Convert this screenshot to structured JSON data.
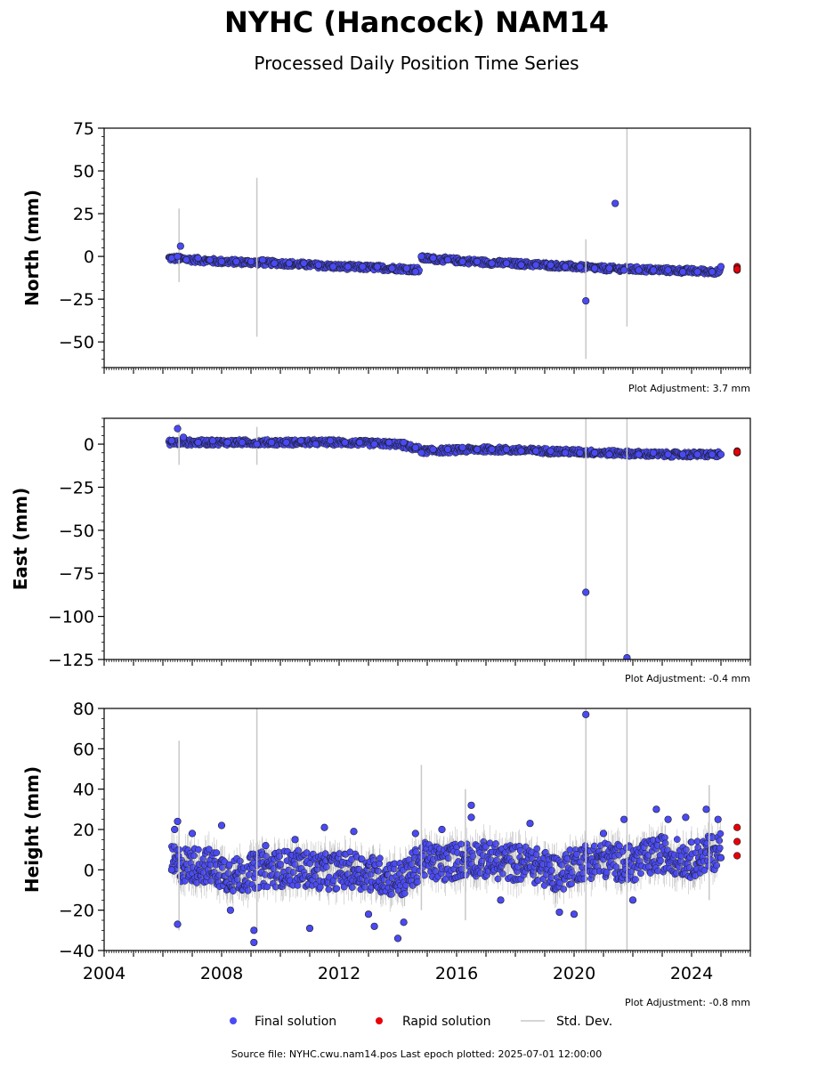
{
  "page": {
    "title": "NYHC (Hancock) NAM14",
    "subtitle": "Processed Daily Position Time Series",
    "source_line": "Source file: NYHC.cwu.nam14.pos  Last epoch plotted: 2025-07-01 12:00:00"
  },
  "legend": {
    "final": "Final solution",
    "rapid": "Rapid solution",
    "stddev": "Std. Dev."
  },
  "colors": {
    "final": "#4a4af5",
    "rapid": "#e8000b",
    "stddev": "#c8c8c8",
    "edge": "#1a1a1a"
  },
  "chart_data": [
    {
      "type": "scatter",
      "ylabel": "North (mm)",
      "adjustment": "Plot Adjustment: 3.7 mm",
      "xlim": [
        2004,
        2026
      ],
      "ylim": [
        -65,
        75
      ],
      "yticks": [
        -50,
        -25,
        0,
        25,
        50,
        75
      ],
      "ytick_labels": [
        "−50",
        "−25",
        "0",
        "25",
        "50",
        "75"
      ],
      "series": [
        {
          "kind": "final",
          "points": [
            [
              2006.3,
              -1
            ],
            [
              2006.5,
              0
            ],
            [
              2006.6,
              6
            ],
            [
              2006.8,
              -2
            ],
            [
              2007.2,
              -1
            ],
            [
              2007.6,
              -2
            ],
            [
              2008.0,
              -3
            ],
            [
              2008.5,
              -3
            ],
            [
              2009.0,
              -3
            ],
            [
              2009.4,
              -2
            ],
            [
              2009.8,
              -4
            ],
            [
              2010.3,
              -4
            ],
            [
              2010.8,
              -4
            ],
            [
              2011.3,
              -5
            ],
            [
              2011.8,
              -6
            ],
            [
              2012.3,
              -6
            ],
            [
              2012.8,
              -6
            ],
            [
              2013.3,
              -6
            ],
            [
              2013.8,
              -7
            ],
            [
              2014.3,
              -7
            ],
            [
              2014.6,
              -9
            ],
            [
              2014.8,
              0
            ],
            [
              2015.2,
              -1
            ],
            [
              2015.7,
              -2
            ],
            [
              2016.2,
              -3
            ],
            [
              2016.7,
              -3
            ],
            [
              2017.2,
              -4
            ],
            [
              2017.7,
              -4
            ],
            [
              2018.2,
              -5
            ],
            [
              2018.7,
              -5
            ],
            [
              2019.2,
              -5
            ],
            [
              2019.7,
              -6
            ],
            [
              2020.2,
              -6
            ],
            [
              2020.4,
              -26
            ],
            [
              2020.7,
              -7
            ],
            [
              2021.2,
              -7
            ],
            [
              2021.4,
              31
            ],
            [
              2021.7,
              -8
            ],
            [
              2022.2,
              -8
            ],
            [
              2022.7,
              -8
            ],
            [
              2023.2,
              -8
            ],
            [
              2023.7,
              -9
            ],
            [
              2024.2,
              -9
            ],
            [
              2024.7,
              -9
            ],
            [
              2025.0,
              -6
            ]
          ],
          "band_centers": [
            [
              2006.2,
              -1
            ],
            [
              2008.0,
              -3
            ],
            [
              2010.0,
              -4
            ],
            [
              2012.0,
              -6
            ],
            [
              2014.0,
              -7
            ],
            [
              2014.75,
              -8
            ],
            [
              2014.8,
              -1
            ],
            [
              2017.0,
              -3.5
            ],
            [
              2019.0,
              -5
            ],
            [
              2021.0,
              -7
            ],
            [
              2023.0,
              -8
            ],
            [
              2025.0,
              -9
            ]
          ]
        },
        {
          "kind": "rapid",
          "points": [
            [
              2025.55,
              -6
            ],
            [
              2025.55,
              -7
            ],
            [
              2025.55,
              -8
            ],
            [
              2025.55,
              -7.5
            ]
          ]
        }
      ],
      "stddev_spikes": [
        [
          2006.55,
          -15,
          28
        ],
        [
          2009.2,
          -47,
          46
        ],
        [
          2020.4,
          -60,
          10
        ],
        [
          2021.8,
          -41,
          75
        ]
      ]
    },
    {
      "type": "scatter",
      "ylabel": "East (mm)",
      "adjustment": "Plot Adjustment: -0.4 mm",
      "xlim": [
        2004,
        2026
      ],
      "ylim": [
        -125,
        15
      ],
      "yticks": [
        -125,
        -100,
        -75,
        -50,
        -25,
        0
      ],
      "ytick_labels": [
        "−125",
        "−100",
        "−75",
        "−50",
        "−25",
        "0"
      ],
      "series": [
        {
          "kind": "final",
          "points": [
            [
              2006.3,
              2
            ],
            [
              2006.5,
              9
            ],
            [
              2006.7,
              4
            ],
            [
              2007.2,
              1
            ],
            [
              2007.7,
              2
            ],
            [
              2008.2,
              1
            ],
            [
              2008.7,
              1
            ],
            [
              2009.2,
              0
            ],
            [
              2009.7,
              1
            ],
            [
              2010.2,
              1
            ],
            [
              2010.7,
              2
            ],
            [
              2011.2,
              0
            ],
            [
              2011.7,
              2
            ],
            [
              2012.2,
              1
            ],
            [
              2012.7,
              1
            ],
            [
              2013.2,
              0
            ],
            [
              2013.7,
              1
            ],
            [
              2014.2,
              1
            ],
            [
              2014.6,
              -2
            ],
            [
              2014.8,
              -5
            ],
            [
              2015.2,
              -3
            ],
            [
              2015.7,
              -3
            ],
            [
              2016.2,
              -2
            ],
            [
              2016.7,
              -3
            ],
            [
              2017.2,
              -3
            ],
            [
              2017.7,
              -3
            ],
            [
              2018.2,
              -4
            ],
            [
              2018.7,
              -4
            ],
            [
              2019.2,
              -4
            ],
            [
              2019.7,
              -5
            ],
            [
              2020.2,
              -5
            ],
            [
              2020.4,
              -86
            ],
            [
              2020.7,
              -5
            ],
            [
              2021.2,
              -6
            ],
            [
              2021.8,
              -124
            ],
            [
              2022.2,
              -6
            ],
            [
              2022.7,
              -5
            ],
            [
              2023.2,
              -6
            ],
            [
              2023.7,
              -6
            ],
            [
              2024.2,
              -6
            ],
            [
              2024.7,
              -6
            ],
            [
              2025.0,
              -6
            ]
          ],
          "band_centers": [
            [
              2006.2,
              1
            ],
            [
              2008.0,
              1
            ],
            [
              2010.0,
              1
            ],
            [
              2012.0,
              1
            ],
            [
              2014.0,
              0
            ],
            [
              2014.75,
              -3
            ],
            [
              2014.8,
              -4
            ],
            [
              2017.0,
              -3
            ],
            [
              2019.0,
              -4
            ],
            [
              2021.0,
              -5
            ],
            [
              2023.0,
              -6
            ],
            [
              2025.0,
              -6
            ]
          ]
        },
        {
          "kind": "rapid",
          "points": [
            [
              2025.55,
              -4
            ],
            [
              2025.55,
              -5
            ],
            [
              2025.55,
              -4.5
            ]
          ]
        }
      ],
      "stddev_spikes": [
        [
          2006.55,
          -12,
          12
        ],
        [
          2009.2,
          -12,
          10
        ],
        [
          2020.4,
          -125,
          15
        ],
        [
          2021.8,
          -125,
          15
        ]
      ]
    },
    {
      "type": "scatter",
      "ylabel": "Height (mm)",
      "adjustment": "Plot Adjustment: -0.8 mm",
      "xlim": [
        2004,
        2026
      ],
      "ylim": [
        -40,
        80
      ],
      "yticks": [
        -40,
        -20,
        0,
        20,
        40,
        60,
        80
      ],
      "ytick_labels": [
        "−40",
        "−20",
        "0",
        "20",
        "40",
        "60",
        "80"
      ],
      "xtick_labels": [
        "2004",
        "2008",
        "2012",
        "2016",
        "2020",
        "2024"
      ],
      "series": [
        {
          "kind": "final",
          "points": [
            [
              2006.3,
              0
            ],
            [
              2006.4,
              20
            ],
            [
              2006.5,
              24
            ],
            [
              2006.5,
              -27
            ],
            [
              2007.0,
              18
            ],
            [
              2008.0,
              22
            ],
            [
              2008.3,
              -20
            ],
            [
              2009.1,
              -36
            ],
            [
              2009.1,
              -30
            ],
            [
              2009.5,
              12
            ],
            [
              2010.5,
              15
            ],
            [
              2011.0,
              -29
            ],
            [
              2011.5,
              21
            ],
            [
              2012.5,
              19
            ],
            [
              2013.0,
              -22
            ],
            [
              2013.2,
              -28
            ],
            [
              2014.0,
              -34
            ],
            [
              2014.2,
              -26
            ],
            [
              2014.6,
              18
            ],
            [
              2015.5,
              20
            ],
            [
              2016.5,
              32
            ],
            [
              2016.5,
              26
            ],
            [
              2017.5,
              -15
            ],
            [
              2018.5,
              23
            ],
            [
              2019.5,
              -21
            ],
            [
              2020.0,
              -22
            ],
            [
              2020.4,
              77
            ],
            [
              2021.0,
              18
            ],
            [
              2021.7,
              25
            ],
            [
              2022.0,
              -15
            ],
            [
              2022.8,
              30
            ],
            [
              2023.2,
              25
            ],
            [
              2023.8,
              26
            ],
            [
              2024.5,
              30
            ],
            [
              2024.9,
              25
            ],
            [
              2025.0,
              6
            ]
          ],
          "band_centers": [
            [
              2006.3,
              3
            ],
            [
              2007.5,
              2
            ],
            [
              2008.5,
              -3
            ],
            [
              2009.3,
              0
            ],
            [
              2010.5,
              1
            ],
            [
              2011.5,
              -1
            ],
            [
              2012.5,
              0
            ],
            [
              2013.5,
              -3
            ],
            [
              2014.2,
              -5
            ],
            [
              2014.8,
              5
            ],
            [
              2015.5,
              3
            ],
            [
              2016.5,
              6
            ],
            [
              2017.5,
              4
            ],
            [
              2018.5,
              3
            ],
            [
              2019.5,
              -2
            ],
            [
              2020.2,
              4
            ],
            [
              2021.0,
              5
            ],
            [
              2022.0,
              3
            ],
            [
              2023.0,
              8
            ],
            [
              2024.0,
              5
            ],
            [
              2025.0,
              10
            ]
          ]
        },
        {
          "kind": "rapid",
          "points": [
            [
              2025.55,
              21
            ],
            [
              2025.55,
              14
            ],
            [
              2025.55,
              7
            ]
          ]
        }
      ],
      "stddev_spikes": [
        [
          2006.55,
          -30,
          64
        ],
        [
          2009.2,
          -30,
          80
        ],
        [
          2014.8,
          -20,
          52
        ],
        [
          2016.3,
          -25,
          40
        ],
        [
          2020.4,
          -40,
          80
        ],
        [
          2021.8,
          -40,
          80
        ],
        [
          2024.6,
          -15,
          42
        ]
      ]
    }
  ]
}
